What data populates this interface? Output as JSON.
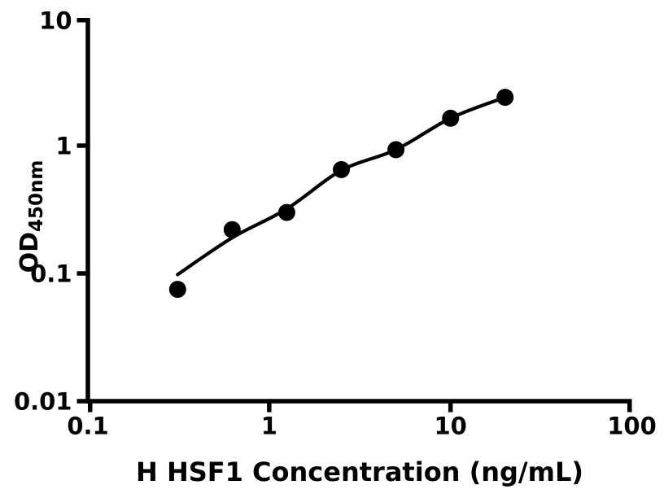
{
  "chart_data": {
    "type": "scatter",
    "xlabel": "H HSF1 Concentration (ng/mL)",
    "ylabel_main": "OD",
    "ylabel_sub": "450nm",
    "x_scale": "log10",
    "y_scale": "log10",
    "xlim": [
      0.1,
      100
    ],
    "ylim": [
      0.01,
      10
    ],
    "grid": false,
    "legend": "none",
    "x_ticks": [
      {
        "value": 0.1,
        "label": "0.1"
      },
      {
        "value": 1,
        "label": "1"
      },
      {
        "value": 10,
        "label": "10"
      },
      {
        "value": 100,
        "label": "100"
      }
    ],
    "y_ticks": [
      {
        "value": 0.01,
        "label": "0.01"
      },
      {
        "value": 0.1,
        "label": "0.1"
      },
      {
        "value": 1,
        "label": "1"
      },
      {
        "value": 10,
        "label": "10"
      }
    ],
    "series": [
      {
        "name": "standard-points",
        "marker": "filled-circle",
        "color": "#000000",
        "x": [
          0.3125,
          0.625,
          1.25,
          2.5,
          5,
          10,
          20
        ],
        "y": [
          0.075,
          0.22,
          0.3,
          0.65,
          0.93,
          1.64,
          2.39
        ]
      }
    ],
    "fit_curve": {
      "name": "fitted-standard-curve",
      "color": "#000000",
      "x": [
        0.3125,
        0.625,
        1.25,
        2.5,
        5,
        10,
        20
      ],
      "y": [
        0.098,
        0.19,
        0.32,
        0.64,
        0.93,
        1.64,
        2.39
      ]
    },
    "colors": {
      "background": "#ffffff",
      "axis": "#000000",
      "text": "#000000",
      "marker": "#000000"
    }
  }
}
